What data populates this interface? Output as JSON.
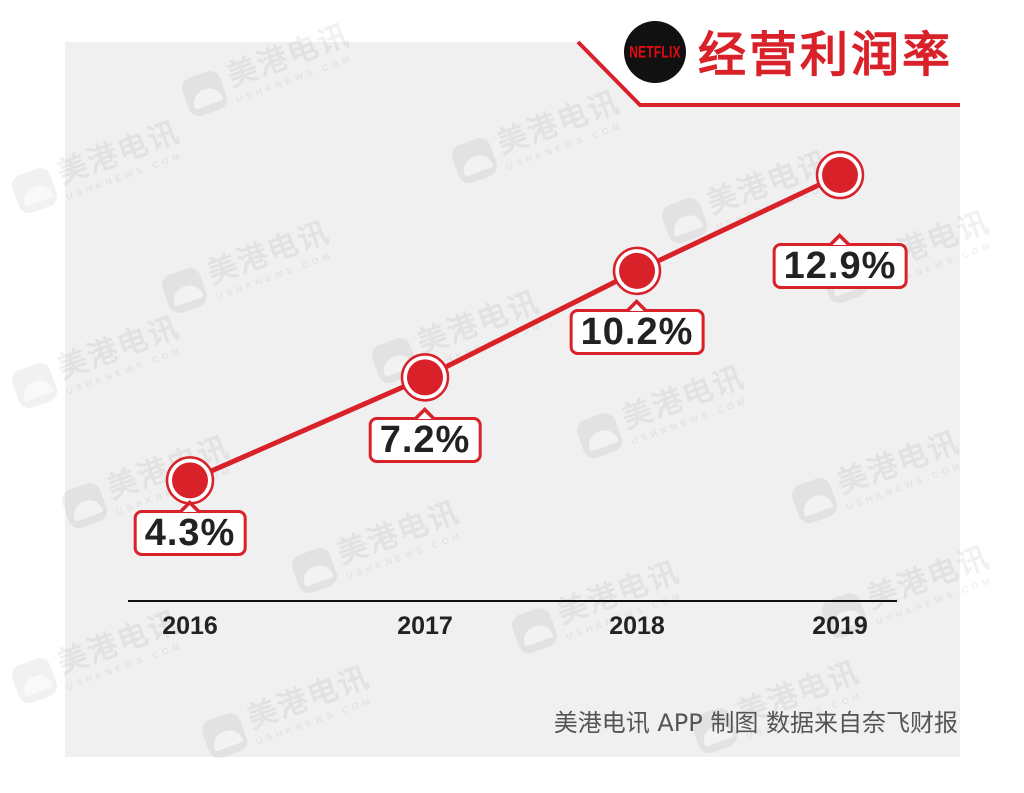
{
  "header": {
    "logo_text": "NETFLIX"
  },
  "chart_data": {
    "type": "line",
    "title": "经营利润率",
    "categories": [
      "2016",
      "2017",
      "2018",
      "2019"
    ],
    "series": [
      {
        "values": [
          4.3,
          7.2,
          10.2,
          12.9
        ]
      }
    ],
    "data_labels": [
      "4.3%",
      "7.2%",
      "10.2%",
      "12.9%"
    ],
    "grid": false
  },
  "footer": {
    "credit": "美港电讯 APP 制图 数据来自奈飞财报"
  },
  "watermark": {
    "text": "美港电讯",
    "sub": "USHKNEWS.COM"
  },
  "colors": {
    "accent": "#d9212a",
    "panel": "#f0f0f0",
    "text": "#222222",
    "logo_bg": "#111111",
    "logo_text": "#e50914"
  }
}
